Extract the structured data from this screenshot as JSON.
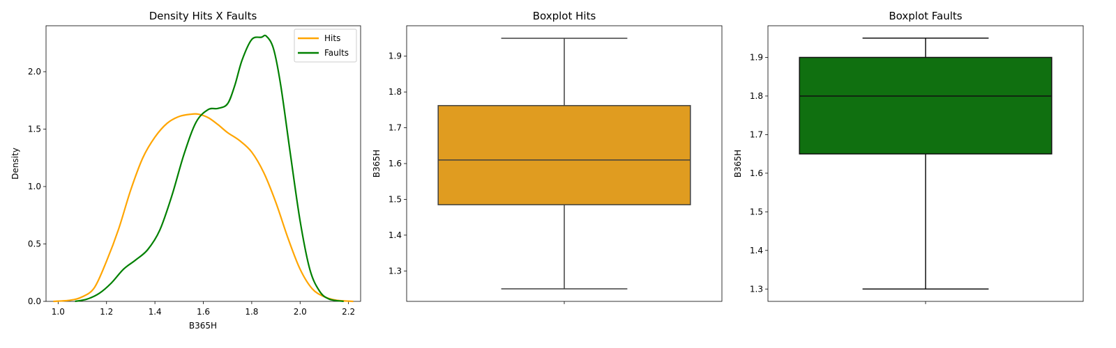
{
  "colors": {
    "hits": "#FFA500",
    "faults": "#008000",
    "hits_box": "#E09C20",
    "faults_box": "#107010"
  },
  "chart_data": [
    {
      "type": "line",
      "title": "Density Hits X Faults",
      "xlabel": "B365H",
      "ylabel": "Density",
      "xlim": [
        0.95,
        2.25
      ],
      "ylim": [
        0,
        2.4
      ],
      "xticks": [
        "1.0",
        "1.2",
        "1.4",
        "1.6",
        "1.8",
        "2.0",
        "2.2"
      ],
      "yticks": [
        "0.0",
        "0.5",
        "1.0",
        "1.5",
        "2.0"
      ],
      "legend": "top-right",
      "series": [
        {
          "name": "Hits",
          "x": [
            0.98,
            1.05,
            1.1,
            1.15,
            1.2,
            1.25,
            1.3,
            1.35,
            1.4,
            1.45,
            1.5,
            1.55,
            1.58,
            1.62,
            1.66,
            1.7,
            1.75,
            1.8,
            1.85,
            1.9,
            1.95,
            2.0,
            2.05,
            2.1,
            2.15,
            2.22
          ],
          "y": [
            0.0,
            0.01,
            0.04,
            0.12,
            0.35,
            0.63,
            0.97,
            1.25,
            1.43,
            1.55,
            1.61,
            1.63,
            1.63,
            1.6,
            1.54,
            1.47,
            1.4,
            1.3,
            1.12,
            0.86,
            0.55,
            0.28,
            0.11,
            0.04,
            0.01,
            0.0
          ]
        },
        {
          "name": "Faults",
          "x": [
            1.07,
            1.12,
            1.17,
            1.22,
            1.27,
            1.32,
            1.37,
            1.42,
            1.47,
            1.52,
            1.57,
            1.62,
            1.66,
            1.7,
            1.73,
            1.76,
            1.8,
            1.84,
            1.86,
            1.89,
            1.92,
            1.96,
            2.0,
            2.04,
            2.08,
            2.12,
            2.18
          ],
          "y": [
            0.0,
            0.02,
            0.07,
            0.16,
            0.28,
            0.36,
            0.45,
            0.62,
            0.92,
            1.28,
            1.56,
            1.67,
            1.68,
            1.72,
            1.88,
            2.1,
            2.28,
            2.3,
            2.31,
            2.2,
            1.88,
            1.28,
            0.7,
            0.28,
            0.09,
            0.02,
            0.0
          ]
        }
      ]
    },
    {
      "type": "box",
      "title": "Boxplot Hits",
      "ylabel": "B365H",
      "ylim": [
        1.215,
        1.985
      ],
      "yticks": [
        "1.3",
        "1.4",
        "1.5",
        "1.6",
        "1.7",
        "1.8",
        "1.9"
      ],
      "box": {
        "min": 1.25,
        "q1": 1.485,
        "median": 1.61,
        "q3": 1.762,
        "max": 1.95
      }
    },
    {
      "type": "box",
      "title": "Boxplot Faults",
      "ylabel": "B365H",
      "ylim": [
        1.268,
        1.982
      ],
      "yticks": [
        "1.3",
        "1.4",
        "1.5",
        "1.6",
        "1.7",
        "1.8",
        "1.9"
      ],
      "box": {
        "min": 1.3,
        "q1": 1.65,
        "median": 1.8,
        "q3": 1.9,
        "max": 1.95
      }
    }
  ]
}
